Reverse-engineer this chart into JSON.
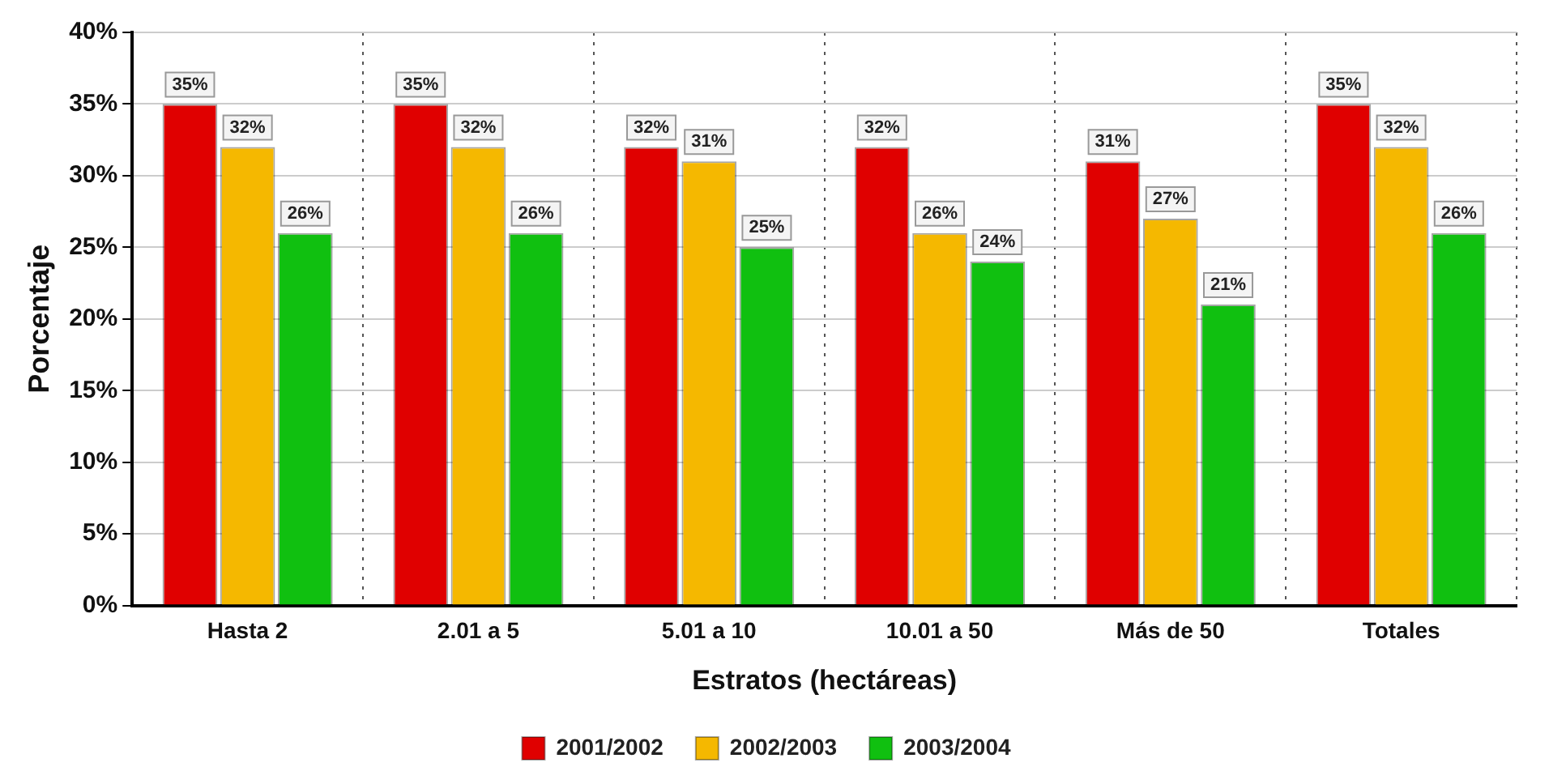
{
  "chart_data": {
    "type": "bar",
    "xlabel": "Estratos (hectáreas)",
    "ylabel": "Porcentaje",
    "categories": [
      "Hasta 2",
      "2.01 a 5",
      "5.01 a 10",
      "10.01 a 50",
      "Más de 50",
      "Totales"
    ],
    "series": [
      {
        "name": "2001/2002",
        "color": "#e00000",
        "values": [
          35,
          35,
          32,
          32,
          31,
          35
        ],
        "value_labels": [
          "35%",
          "35%",
          "32%",
          "32%",
          "31%",
          "35%"
        ]
      },
      {
        "name": "2002/2003",
        "color": "#f5b800",
        "values": [
          32,
          32,
          31,
          26,
          27,
          32
        ],
        "value_labels": [
          "32%",
          "32%",
          "31%",
          "26%",
          "27%",
          "32%"
        ]
      },
      {
        "name": "2003/2004",
        "color": "#10c010",
        "values": [
          26,
          26,
          25,
          24,
          21,
          26
        ],
        "value_labels": [
          "26%",
          "26%",
          "25%",
          "24%",
          "21%",
          "26%"
        ]
      }
    ],
    "ylim": [
      0,
      40
    ],
    "yticks": [
      {
        "value": 0,
        "label": "0%"
      },
      {
        "value": 5,
        "label": "5%"
      },
      {
        "value": 10,
        "label": "10%"
      },
      {
        "value": 15,
        "label": "15%"
      },
      {
        "value": 20,
        "label": "20%"
      },
      {
        "value": 25,
        "label": "25%"
      },
      {
        "value": 30,
        "label": "30%"
      },
      {
        "value": 35,
        "label": "35%"
      },
      {
        "value": 40,
        "label": "40%"
      }
    ],
    "grid": true,
    "legend": "bottom"
  }
}
